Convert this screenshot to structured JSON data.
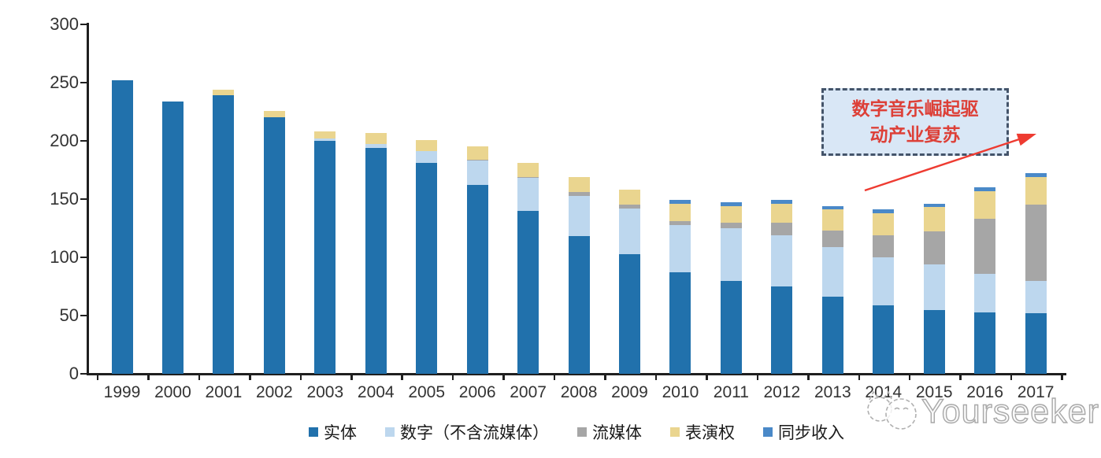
{
  "chart_data": {
    "type": "bar",
    "stacked": true,
    "title": "",
    "xlabel": "",
    "ylabel": "",
    "ylim": [
      0,
      300
    ],
    "y_ticks": [
      0,
      50,
      100,
      150,
      200,
      250,
      300
    ],
    "grid": false,
    "legend_position": "bottom",
    "categories": [
      "1999",
      "2000",
      "2001",
      "2002",
      "2003",
      "2004",
      "2005",
      "2006",
      "2007",
      "2008",
      "2009",
      "2010",
      "2011",
      "2012",
      "2013",
      "2014",
      "2015",
      "2016",
      "2017"
    ],
    "series": [
      {
        "name": "实体",
        "color": "#2171ac",
        "values": [
          252,
          234,
          239,
          220,
          200,
          194,
          181,
          162,
          140,
          118,
          103,
          87,
          80,
          75,
          66,
          59,
          55,
          53,
          52
        ]
      },
      {
        "name": "数字（不含流媒体）",
        "color": "#bdd7ee",
        "values": [
          0,
          0,
          0,
          0,
          2,
          3,
          10,
          21,
          28,
          35,
          39,
          41,
          45,
          44,
          43,
          41,
          39,
          33,
          28
        ]
      },
      {
        "name": "流媒体",
        "color": "#a6a6a6",
        "values": [
          0,
          0,
          0,
          0,
          0,
          0,
          0,
          1,
          1,
          3,
          3,
          3,
          5,
          11,
          14,
          19,
          28,
          47,
          65
        ]
      },
      {
        "name": "表演权",
        "color": "#ead58f",
        "values": [
          0,
          0,
          5,
          6,
          6,
          10,
          10,
          11,
          12,
          13,
          13,
          15,
          14,
          16,
          18,
          19,
          21,
          24,
          24
        ]
      },
      {
        "name": "同步收入",
        "color": "#4a89c8",
        "values": [
          0,
          0,
          0,
          0,
          0,
          0,
          0,
          0,
          0,
          0,
          0,
          3,
          3,
          3,
          3,
          3,
          3,
          3,
          3
        ]
      }
    ],
    "annotation": "数字音乐崛起驱动产业复苏"
  },
  "annotation": {
    "line1": "数字音乐崛起驱",
    "line2": "动产业复苏",
    "text_color": "#dd4038",
    "box_fill": "#d9e7f6",
    "border_color": "#44546a",
    "arrow_color": "#ee3b31"
  },
  "watermark": {
    "text": "Yourseeker"
  },
  "colors": {
    "axis": "#1f1f1f",
    "tick_label": "#333333"
  }
}
